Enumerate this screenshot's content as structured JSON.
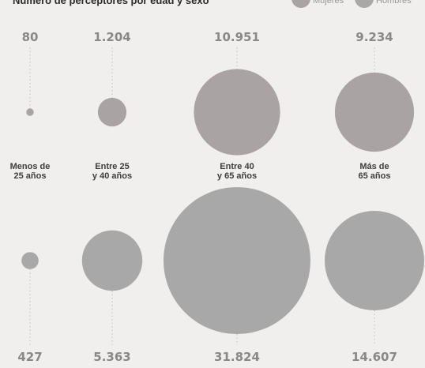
{
  "chart_data": {
    "type": "bubble",
    "title": "Número de perceptores por edad y sexo",
    "categories": [
      "Menos de 25 años",
      "Entre 25 y 40 años",
      "Entre 40 y 65 años",
      "Más de 65 años"
    ],
    "category_lines": [
      [
        "Menos de",
        "25 años"
      ],
      [
        "Entre 25",
        "y 40 años"
      ],
      [
        "Entre 40",
        "y 65 años"
      ],
      [
        "Más de",
        "65 años"
      ]
    ],
    "series": [
      {
        "name": "Mujeres",
        "values": [
          80,
          1204,
          10951,
          9234
        ],
        "labels": [
          "80",
          "1.204",
          "10.951",
          "9.234"
        ],
        "color": "#aaa3a3"
      },
      {
        "name": "Hombres",
        "values": [
          427,
          5363,
          31824,
          14607
        ],
        "labels": [
          "427",
          "5.363",
          "31.824",
          "14.607"
        ],
        "color": "#a7a8a7"
      }
    ],
    "legend_position": "top-right"
  }
}
